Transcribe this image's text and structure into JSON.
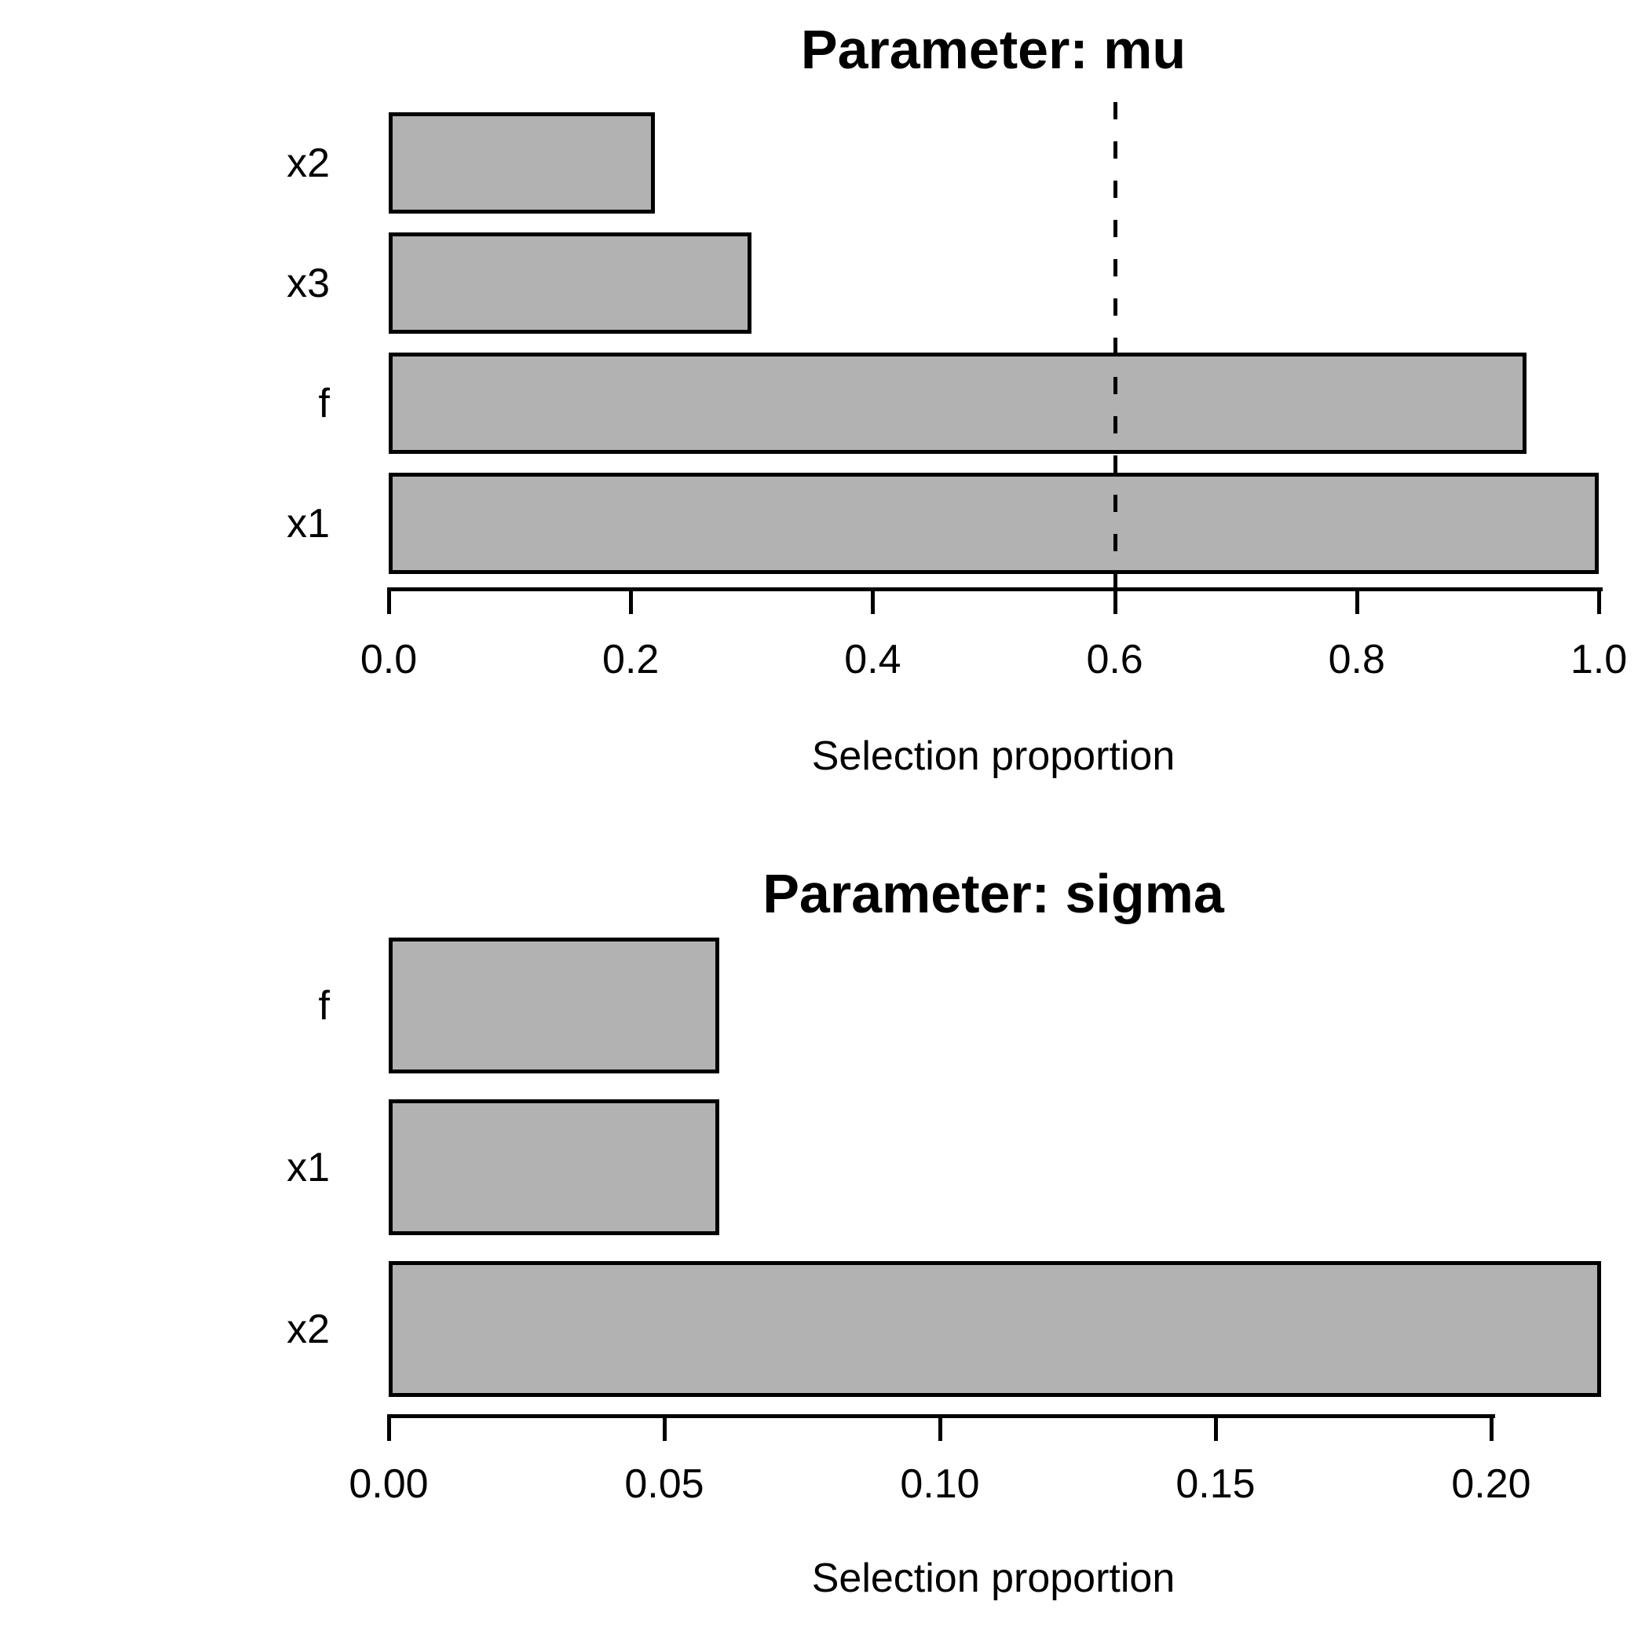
{
  "chart_data": [
    {
      "type": "bar",
      "orientation": "horizontal",
      "title": "Parameter: mu",
      "xlabel": "Selection proportion",
      "categories": [
        "x2",
        "x3",
        "f",
        "x1"
      ],
      "values": [
        0.22,
        0.3,
        0.94,
        1.0
      ],
      "xticks": [
        0.0,
        0.2,
        0.4,
        0.6,
        0.8,
        1.0
      ],
      "xtick_labels": [
        "0.0",
        "0.2",
        "0.4",
        "0.6",
        "0.8",
        "1.0"
      ],
      "xlim": [
        0,
        1.0
      ],
      "reference_line_x": 0.6,
      "reference_line_style": "dashed",
      "bar_fill": "#b2b2b2",
      "bar_border": "#000000",
      "grid": false,
      "legend": false
    },
    {
      "type": "bar",
      "orientation": "horizontal",
      "title": "Parameter: sigma",
      "xlabel": "Selection proportion",
      "categories": [
        "f",
        "x1",
        "x2"
      ],
      "values": [
        0.06,
        0.06,
        0.22
      ],
      "xticks": [
        0.0,
        0.05,
        0.1,
        0.15,
        0.2
      ],
      "xtick_labels": [
        "0.00",
        "0.05",
        "0.10",
        "0.15",
        "0.20"
      ],
      "xlim": [
        0,
        0.22
      ],
      "reference_line_x": null,
      "bar_fill": "#b2b2b2",
      "bar_border": "#000000",
      "grid": false,
      "legend": false
    }
  ]
}
